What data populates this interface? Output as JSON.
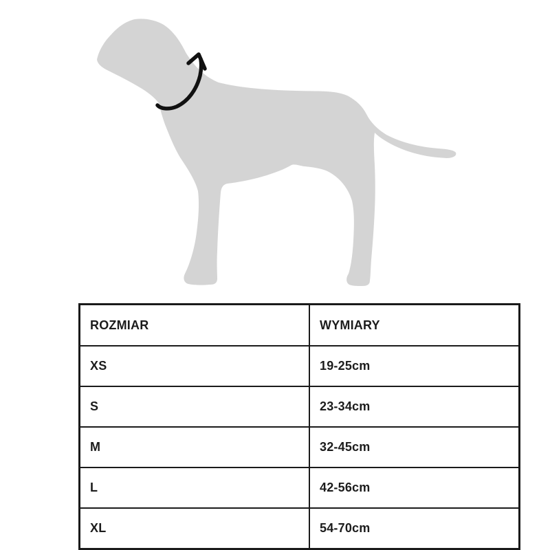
{
  "illustration": {
    "subject": "dog-silhouette-side-view",
    "annotation": "neck-circumference-measurement-arrow"
  },
  "colors": {
    "background": "#ffffff",
    "dog_silhouette": "#d4d4d4",
    "arrow": "#111111",
    "table_border": "#1a1a1a",
    "table_text": "#1c1c1c"
  },
  "table": {
    "columns": [
      "ROZMIAR",
      "WYMIARY"
    ],
    "rows": [
      {
        "size": "XS",
        "dimension": "19-25cm"
      },
      {
        "size": "S",
        "dimension": "23-34cm"
      },
      {
        "size": "M",
        "dimension": "32-45cm"
      },
      {
        "size": "L",
        "dimension": "42-56cm"
      },
      {
        "size": "XL",
        "dimension": "54-70cm"
      }
    ]
  }
}
